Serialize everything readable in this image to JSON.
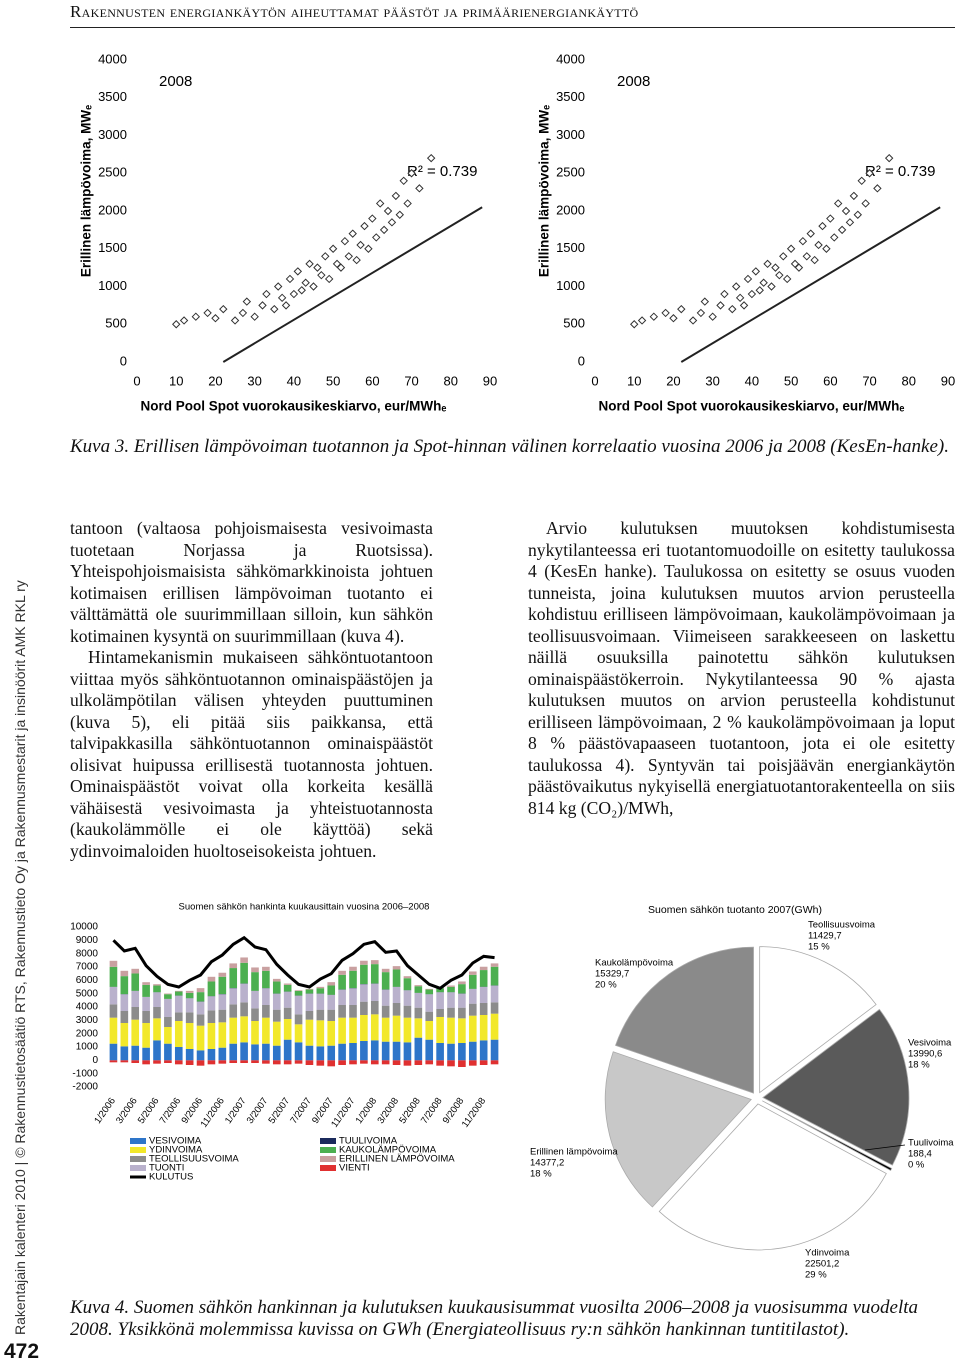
{
  "header": {
    "title": "Rakennusten energiankäytön aiheuttamat päästöt ja primäärienergiankäyttö"
  },
  "figure3_caption": "Kuva 3. Erillisen lämpövoiman tuotannon ja Spot-hinnan välinen korrelaatio vuosina 2006 ja 2008 (KesEn-hanke).",
  "left_column": [
    "tantoon (valtaosa pohjoismaisesta vesivoimasta tuotetaan Norjassa ja Ruotsissa). Yhteispohjoismaisista sähkömarkkinoista johtuen kotimaisen erillisen lämpövoiman tuotanto ei välttämättä ole suurimmillaan silloin, kun sähkön kotimainen kysyntä on suurimmillaan (kuva 4).",
    "Hintamekanismin mukaiseen sähköntuotantoon viittaa myös sähköntuotannon ominaispäästöjen ja ulkolämpötilan välisen yhteyden puuttuminen (kuva 5), eli pitää siis paikkansa, että talvipakkasilla sähköntuotannon ominaispäästöt olisivat huipussa erillisestä tuotannosta johtuen. Ominaispäästöt voivat olla korkeita kesällä vähäisestä vesivoimasta ja yhteistuotannosta (kaukolämmölle ei ole käyttöä) sekä ydinvoimaloiden huoltoseisokeista johtuen."
  ],
  "right_column": [
    "Arvio kulutuksen muutoksen kohdistumisesta nykytilanteessa eri tuotantomuodoille on esitetty taulukossa 4 (KesEn hanke). Taulukossa on esitetty se osuus vuoden tunneista, joina kulutuksen muutos arvion perusteella kohdistuu erilliseen lämpövoimaan, kaukolämpövoimaan ja teollisuusvoimaan. Viimeiseen sarakkeeseen on laskettu näillä osuuksilla painotettu sähkön kulutuksen ominaispäästökerroin. Nykytilanteessa 90 % ajasta kulutuksen muutos on arvion perusteella kohdistunut erilliseen lämpövoimaan, 2 % kaukolämpövoimaan ja loput 8 % päästövapaaseen tuotantoon, jota ei ole esitetty taulukossa 4). Syntyvän tai poisjäävän energiankäytön päästövaikutus nykyisellä energiatuotantorakenteella on siis 814 kg (CO₂)/MWh,"
  ],
  "figure4_caption": "Kuva 4. Suomen sähkön hankinnan ja kulutuksen kuukausisummat vuosilta 2006–2008 ja vuosisumma vuodelta 2008. Yksikkönä molemmissa kuvissa on GWh (Energiateollisuus ry:n sähkön hankinnan tuntitilastot).",
  "side_text": "Rakentajain kalenteri 2010 | © Rakennustietosäätiö RTS, Rakennustieto Oy ja Rakennusmestarit ja insinöörit AMK RKL ry",
  "page_number": "472",
  "chart_data": [
    {
      "type": "scatter",
      "panel_label": "2008",
      "r_squared_label": "R² = 0.739",
      "x_label": "Nord Pool Spot vuorokausikeskiarvo, eur/MWhₑ",
      "y_label": "Erillinen lämpövoima, MWₑ",
      "xlim": [
        0,
        90
      ],
      "xticks": [
        0,
        10,
        20,
        30,
        40,
        50,
        60,
        70,
        80,
        90
      ],
      "ylim": [
        0,
        4000
      ],
      "yticks": [
        0,
        500,
        1000,
        1500,
        2000,
        2500,
        3000,
        3500,
        4000
      ],
      "color": "#333333",
      "x": [
        10,
        12,
        15,
        18,
        20,
        22,
        25,
        27,
        28,
        30,
        32,
        33,
        35,
        36,
        37,
        38,
        39,
        40,
        41,
        42,
        43,
        44,
        45,
        46,
        47,
        48,
        49,
        50,
        51,
        52,
        53,
        54,
        55,
        56,
        57,
        58,
        59,
        60,
        61,
        62,
        63,
        64,
        65,
        66,
        67,
        68,
        69,
        70,
        72,
        75
      ],
      "y": [
        500,
        550,
        600,
        650,
        580,
        700,
        550,
        650,
        800,
        600,
        750,
        900,
        700,
        1000,
        850,
        750,
        1100,
        900,
        1200,
        950,
        1050,
        1300,
        1000,
        1250,
        1150,
        1400,
        1100,
        1500,
        1300,
        1250,
        1600,
        1400,
        1700,
        1350,
        1550,
        1800,
        1500,
        1900,
        1650,
        2100,
        1750,
        2000,
        1850,
        2200,
        1950,
        2400,
        2100,
        2500,
        2300,
        2700
      ],
      "trendline": {
        "x": [
          22,
          88
        ],
        "y": [
          0,
          2050
        ]
      }
    },
    {
      "type": "scatter",
      "panel_label": "2008",
      "r_squared_label": "R² = 0.739",
      "x_label": "Nord Pool Spot vuorokausikeskiarvo, eur/MWhₑ",
      "y_label": "Erillinen lämpövoima, MWₑ",
      "xlim": [
        0,
        90
      ],
      "xticks": [
        0,
        10,
        20,
        30,
        40,
        50,
        60,
        70,
        80,
        90
      ],
      "ylim": [
        0,
        4000
      ],
      "yticks": [
        0,
        500,
        1000,
        1500,
        2000,
        2500,
        3000,
        3500,
        4000
      ],
      "color": "#333333",
      "x": [
        10,
        12,
        15,
        18,
        20,
        22,
        25,
        27,
        28,
        30,
        32,
        33,
        35,
        36,
        37,
        38,
        39,
        40,
        41,
        42,
        43,
        44,
        45,
        46,
        47,
        48,
        49,
        50,
        51,
        52,
        53,
        54,
        55,
        56,
        57,
        58,
        59,
        60,
        61,
        62,
        63,
        64,
        65,
        66,
        67,
        68,
        69,
        70,
        72,
        75
      ],
      "y": [
        500,
        550,
        600,
        650,
        580,
        700,
        550,
        650,
        800,
        600,
        750,
        900,
        700,
        1000,
        850,
        750,
        1100,
        900,
        1200,
        950,
        1050,
        1300,
        1000,
        1250,
        1150,
        1400,
        1100,
        1500,
        1300,
        1250,
        1600,
        1400,
        1700,
        1350,
        1550,
        1800,
        1500,
        1900,
        1650,
        2100,
        1750,
        2000,
        1850,
        2200,
        1950,
        2400,
        2100,
        2500,
        2300,
        2700
      ],
      "trendline": {
        "x": [
          22,
          88
        ],
        "y": [
          0,
          2050
        ]
      }
    },
    {
      "type": "stacked_bar",
      "title": "Suomen sähkön hankinta kuukausittain vuosina 2006–2008",
      "categories": [
        "1/2006",
        null,
        "3/2006",
        null,
        "5/2006",
        null,
        "7/2006",
        null,
        "9/2006",
        null,
        "11/2006",
        null,
        "1/2007",
        null,
        "3/2007",
        null,
        "5/2007",
        null,
        "7/2007",
        null,
        "9/2007",
        null,
        "11/2007",
        null,
        "1/2008",
        null,
        "3/2008",
        null,
        "5/2008",
        null,
        "7/2008",
        null,
        "9/2008",
        null,
        "11/2008",
        null
      ],
      "ylim": [
        -2000,
        10000
      ],
      "yticks": [
        -2000,
        -1000,
        0,
        1000,
        2000,
        3000,
        4000,
        5000,
        6000,
        7000,
        8000,
        9000,
        10000
      ],
      "series": [
        {
          "name": "VESIVOIMA",
          "color": "#2e75c9",
          "values": [
            1250,
            1050,
            1100,
            950,
            1500,
            1250,
            1000,
            850,
            750,
            850,
            950,
            1250,
            1350,
            1200,
            1250,
            1100,
            1550,
            1350,
            1100,
            1050,
            1100,
            1250,
            1300,
            1450,
            1500,
            1400,
            1400,
            1350,
            1700,
            1550,
            1300,
            1250,
            1300,
            1400,
            1500,
            1550
          ]
        },
        {
          "name": "YDINVOIMA",
          "color": "#f2e82a",
          "values": [
            1950,
            1750,
            1950,
            1850,
            1650,
            1250,
            1950,
            1950,
            1850,
            1950,
            1900,
            1950,
            1950,
            1750,
            1950,
            1800,
            1550,
            1350,
            1950,
            1950,
            1850,
            1950,
            1900,
            1950,
            1950,
            1800,
            1950,
            1850,
            1450,
            1400,
            1950,
            1950,
            1850,
            1950,
            1900,
            1950
          ]
        },
        {
          "name": "TEOLLISUUSVOIMA",
          "color": "#8c8c8c",
          "values": [
            1000,
            900,
            950,
            900,
            850,
            750,
            650,
            800,
            850,
            950,
            950,
            1000,
            1050,
            950,
            950,
            900,
            850,
            750,
            650,
            800,
            850,
            950,
            950,
            1000,
            1000,
            900,
            950,
            900,
            800,
            700,
            600,
            750,
            800,
            900,
            900,
            850
          ]
        },
        {
          "name": "TUONTI",
          "color": "#b9b1cc",
          "values": [
            1300,
            1250,
            1200,
            1050,
            1100,
            1350,
            1250,
            1050,
            950,
            1050,
            1150,
            1200,
            1400,
            1300,
            1250,
            1200,
            1200,
            1400,
            1300,
            1200,
            1100,
            1150,
            1250,
            1300,
            1300,
            1200,
            1200,
            1150,
            1100,
            1300,
            1250,
            1150,
            1050,
            1100,
            1200,
            1250
          ]
        },
        {
          "name": "KULUTUS",
          "type": "line",
          "color": "#000000",
          "values": [
            9000,
            8200,
            8400,
            7100,
            6300,
            5700,
            5500,
            6000,
            6400,
            7400,
            7900,
            8700,
            9200,
            8500,
            8300,
            7200,
            6400,
            5700,
            5500,
            6100,
            6500,
            7500,
            8000,
            8700,
            8900,
            8100,
            8200,
            7100,
            6400,
            5700,
            5400,
            6000,
            6400,
            7300,
            7800,
            7700
          ]
        },
        {
          "name": "TUULIVOIMA",
          "color": "#1b2a5c",
          "values": [
            15,
            15,
            15,
            10,
            10,
            10,
            10,
            10,
            15,
            15,
            20,
            20,
            15,
            15,
            15,
            10,
            10,
            10,
            10,
            10,
            15,
            15,
            20,
            20,
            15,
            15,
            15,
            10,
            10,
            10,
            10,
            10,
            15,
            15,
            20,
            20
          ]
        },
        {
          "name": "KAUKOLÄMPÖVOIMA",
          "color": "#4caf50",
          "values": [
            1500,
            1350,
            1300,
            900,
            500,
            350,
            300,
            400,
            700,
            1100,
            1300,
            1500,
            1550,
            1400,
            1300,
            900,
            500,
            350,
            300,
            400,
            700,
            1100,
            1300,
            1450,
            1450,
            1300,
            1300,
            900,
            500,
            350,
            300,
            400,
            700,
            1050,
            1250,
            1400
          ]
        },
        {
          "name": "ERILLINEN LÄMPÖVOIMA",
          "color": "#c9a0a0",
          "values": [
            450,
            400,
            350,
            200,
            100,
            50,
            50,
            150,
            300,
            350,
            300,
            350,
            400,
            350,
            300,
            200,
            100,
            50,
            50,
            100,
            250,
            300,
            300,
            300,
            300,
            250,
            250,
            150,
            80,
            50,
            50,
            100,
            200,
            250,
            250,
            250
          ]
        },
        {
          "name": "VIENTI",
          "color": "#e03030",
          "values": [
            -150,
            -150,
            -200,
            -300,
            -250,
            -200,
            -300,
            -350,
            -400,
            -300,
            -250,
            -200,
            -200,
            -200,
            -250,
            -300,
            -300,
            -250,
            -350,
            -400,
            -450,
            -350,
            -300,
            -250,
            -300,
            -300,
            -350,
            -400,
            -350,
            -300,
            -400,
            -450,
            -500,
            -400,
            -350,
            -300
          ]
        }
      ]
    },
    {
      "type": "pie",
      "title": "Suomen sähkön tuotanto 2007(GWh)",
      "categories": [
        "Teollisuusvoima",
        "Vesivoima",
        "Tuulivoima",
        "Ydinvoima",
        "Erillinen lämpövoima",
        "Kaukolämpövoima"
      ],
      "values": [
        11429.7,
        13990.6,
        188.4,
        22501.2,
        14377.2,
        15329.7
      ],
      "value_labels": [
        "11429,7",
        "13990,6",
        "188,4",
        "22501,2",
        "14377,2",
        "15329,7"
      ],
      "percent_labels": [
        "15 %",
        "18 %",
        "0 %",
        "29 %",
        "18 %",
        "20 %"
      ],
      "colors": [
        "#ffffff",
        "#5a5a5a",
        "#000000",
        "#ffffff",
        "#c8c8c8",
        "#8a8a8a"
      ]
    }
  ]
}
